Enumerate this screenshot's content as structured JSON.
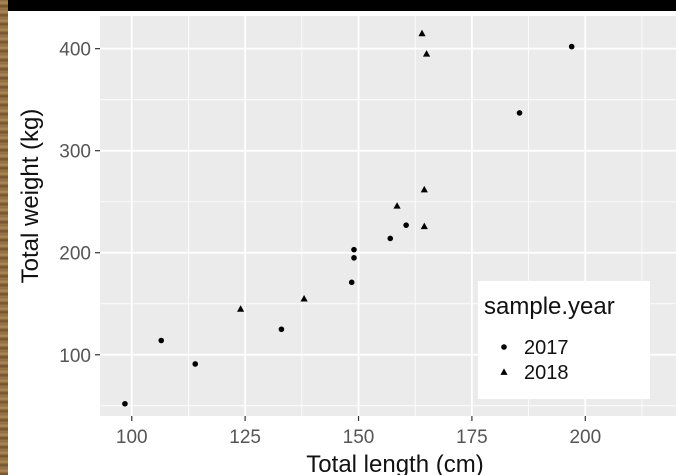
{
  "chart_data": {
    "type": "scatter",
    "xlabel": "Total length (cm)",
    "ylabel": "Total weight (kg)",
    "xlim": [
      93,
      220
    ],
    "ylim": [
      40,
      432
    ],
    "x_ticks": [
      100,
      125,
      150,
      175,
      200
    ],
    "y_ticks": [
      100,
      200,
      300,
      400
    ],
    "x_tick_labels": [
      "100",
      "125",
      "150",
      "175",
      "200"
    ],
    "y_tick_labels": [
      "100",
      "200",
      "300",
      "400"
    ],
    "grid": true,
    "legend": {
      "title": "sample.year",
      "placement": "bottom-right",
      "entries": [
        {
          "label": "2017",
          "shape": "circle"
        },
        {
          "label": "2018",
          "shape": "triangle"
        }
      ]
    },
    "series": [
      {
        "name": "2017",
        "shape": "circle",
        "points": [
          [
            98.5,
            52
          ],
          [
            106.5,
            114
          ],
          [
            114,
            91
          ],
          [
            133,
            125
          ],
          [
            148.5,
            171
          ],
          [
            149,
            195
          ],
          [
            149,
            203
          ],
          [
            157,
            214
          ],
          [
            160.5,
            227
          ],
          [
            185.5,
            337
          ],
          [
            197,
            402
          ]
        ]
      },
      {
        "name": "2018",
        "shape": "triangle",
        "points": [
          [
            124,
            145
          ],
          [
            138,
            155
          ],
          [
            158.5,
            246
          ],
          [
            164,
            415
          ],
          [
            165,
            395
          ],
          [
            164.5,
            262
          ],
          [
            164.5,
            226
          ]
        ]
      }
    ],
    "colors": {
      "panel_background": "#ebebeb",
      "grid_major": "#ffffff",
      "point": "#000000",
      "legend_background": "#ffffff"
    }
  }
}
